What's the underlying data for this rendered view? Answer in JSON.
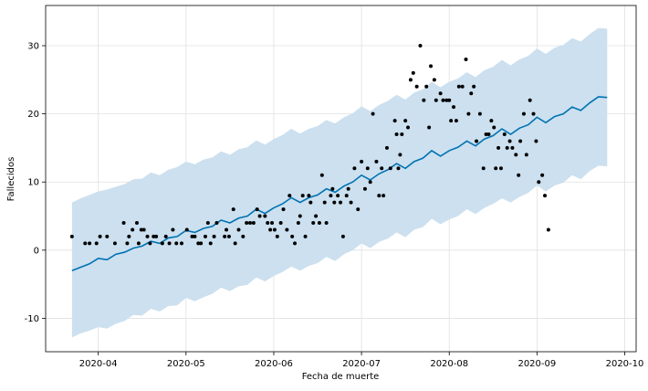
{
  "chart_data": {
    "type": "forecast",
    "xlabel": "Fecha de muerte",
    "ylabel": "Fallecidos",
    "grid": true,
    "xlim": [
      3.4,
      10.13
    ],
    "ylim": [
      -14.9,
      35.9
    ],
    "xticks": [
      {
        "value": 4,
        "label": "2020-04"
      },
      {
        "value": 5,
        "label": "2020-05"
      },
      {
        "value": 6,
        "label": "2020-06"
      },
      {
        "value": 7,
        "label": "2020-07"
      },
      {
        "value": 8,
        "label": "2020-08"
      },
      {
        "value": 9,
        "label": "2020-09"
      },
      {
        "value": 10,
        "label": "2020-10"
      }
    ],
    "yticks": [
      -10,
      0,
      10,
      20,
      30
    ],
    "observed": {
      "color": "#000000",
      "x": [
        3.7,
        3.85,
        3.9,
        3.98,
        4.02,
        4.1,
        4.19,
        4.29,
        4.33,
        4.35,
        4.39,
        4.44,
        4.46,
        4.49,
        4.52,
        4.56,
        4.59,
        4.63,
        4.66,
        4.73,
        4.77,
        4.81,
        4.85,
        4.89,
        4.95,
        5.01,
        5.07,
        5.1,
        5.14,
        5.17,
        5.22,
        5.25,
        5.28,
        5.32,
        5.35,
        5.44,
        5.46,
        5.49,
        5.54,
        5.56,
        5.6,
        5.65,
        5.69,
        5.73,
        5.77,
        5.81,
        5.84,
        5.9,
        5.93,
        5.96,
        5.98,
        6.01,
        6.04,
        6.08,
        6.11,
        6.15,
        6.18,
        6.21,
        6.24,
        6.28,
        6.3,
        6.33,
        6.36,
        6.4,
        6.42,
        6.45,
        6.48,
        6.52,
        6.55,
        6.58,
        6.6,
        6.65,
        6.67,
        6.69,
        6.73,
        6.76,
        6.79,
        6.83,
        6.85,
        6.88,
        6.92,
        6.96,
        7.0,
        7.04,
        7.07,
        7.1,
        7.13,
        7.17,
        7.2,
        7.23,
        7.25,
        7.29,
        7.33,
        7.38,
        7.4,
        7.42,
        7.44,
        7.46,
        7.5,
        7.53,
        7.56,
        7.59,
        7.63,
        7.67,
        7.71,
        7.74,
        7.77,
        7.79,
        7.83,
        7.85,
        7.9,
        7.93,
        7.97,
        8.0,
        8.02,
        8.05,
        8.08,
        8.11,
        8.15,
        8.19,
        8.22,
        8.25,
        8.28,
        8.31,
        8.35,
        8.39,
        8.42,
        8.45,
        8.48,
        8.51,
        8.53,
        8.56,
        8.59,
        8.63,
        8.66,
        8.69,
        8.72,
        8.76,
        8.79,
        8.81,
        8.85,
        8.88,
        8.92,
        8.96,
        8.99,
        9.02,
        9.06,
        9.09,
        9.13
      ],
      "values": [
        2,
        1,
        1,
        1,
        2,
        2,
        1,
        4,
        1,
        2,
        3,
        4,
        1,
        3,
        3,
        2,
        1,
        2,
        2,
        1,
        2,
        1,
        3,
        1,
        1,
        3,
        2,
        2,
        1,
        1,
        2,
        4,
        1,
        2,
        4,
        2,
        3,
        2,
        6,
        1,
        3,
        2,
        4,
        4,
        4,
        6,
        5,
        5,
        4,
        3,
        4,
        3,
        2,
        4,
        6,
        3,
        8,
        2,
        1,
        4,
        5,
        8,
        2,
        8,
        7,
        4,
        5,
        4,
        11,
        7,
        4,
        8,
        9,
        7,
        8,
        7,
        2,
        8,
        9,
        7,
        12,
        6,
        13,
        9,
        12,
        10,
        20,
        13,
        8,
        12,
        8,
        15,
        12,
        19,
        17,
        12,
        14,
        17,
        19,
        18,
        25,
        26,
        24,
        30,
        22,
        24,
        18,
        27,
        25,
        22,
        23,
        22,
        22,
        22,
        19,
        21,
        19,
        24,
        24,
        28,
        20,
        23,
        24,
        16,
        20,
        12,
        17,
        17,
        19,
        18,
        12,
        15,
        12,
        17,
        15,
        16,
        15,
        14,
        11,
        16,
        20,
        14,
        22,
        20,
        16,
        10,
        11,
        8,
        3
      ]
    },
    "forecast": {
      "color": "#0072b2",
      "band_color": "#cce0ef",
      "x": [
        3.7,
        3.8,
        3.9,
        4.0,
        4.1,
        4.2,
        4.3,
        4.4,
        4.5,
        4.6,
        4.7,
        4.8,
        4.9,
        5.0,
        5.1,
        5.2,
        5.3,
        5.4,
        5.5,
        5.6,
        5.7,
        5.8,
        5.9,
        6.0,
        6.1,
        6.2,
        6.3,
        6.4,
        6.5,
        6.6,
        6.7,
        6.8,
        6.9,
        7.0,
        7.1,
        7.2,
        7.3,
        7.4,
        7.5,
        7.6,
        7.7,
        7.8,
        7.9,
        8.0,
        8.1,
        8.2,
        8.3,
        8.4,
        8.5,
        8.6,
        8.7,
        8.8,
        8.9,
        9.0,
        9.1,
        9.2,
        9.3,
        9.4,
        9.5,
        9.6,
        9.7,
        9.8
      ],
      "values": [
        -3.0,
        -2.5,
        -2.0,
        -1.2,
        -1.4,
        -0.6,
        -0.3,
        0.3,
        0.6,
        1.3,
        1.0,
        1.8,
        2.0,
        2.9,
        2.6,
        3.2,
        3.5,
        4.4,
        4.0,
        4.7,
        5.0,
        6.0,
        5.4,
        6.2,
        6.8,
        7.7,
        7.0,
        7.7,
        8.1,
        9.0,
        8.5,
        9.4,
        10.0,
        11.0,
        10.3,
        11.2,
        11.8,
        12.7,
        12.0,
        13.0,
        13.5,
        14.6,
        13.8,
        14.6,
        15.1,
        16.0,
        15.3,
        16.3,
        16.8,
        17.8,
        17.0,
        17.9,
        18.4,
        19.5,
        18.7,
        19.6,
        20.0,
        21.0,
        20.5,
        21.6,
        22.5,
        22.4
      ],
      "lower": [
        -12.8,
        -12.2,
        -11.8,
        -11.3,
        -11.5,
        -10.8,
        -10.4,
        -9.5,
        -9.6,
        -8.6,
        -9.0,
        -8.2,
        -8.1,
        -7.0,
        -7.5,
        -6.9,
        -6.4,
        -5.5,
        -6.0,
        -5.3,
        -5.1,
        -4.0,
        -4.6,
        -3.8,
        -3.2,
        -2.4,
        -3.0,
        -2.3,
        -1.9,
        -1.0,
        -1.6,
        -0.6,
        0.0,
        1.0,
        0.3,
        1.2,
        1.7,
        2.6,
        1.9,
        3.0,
        3.4,
        4.6,
        3.8,
        4.5,
        5.0,
        6.0,
        5.3,
        6.2,
        6.8,
        7.6,
        7.0,
        7.8,
        8.4,
        9.5,
        8.6,
        9.5,
        9.9,
        11.0,
        10.4,
        11.6,
        12.4,
        12.3
      ],
      "upper": [
        7.0,
        7.6,
        8.1,
        8.6,
        8.9,
        9.3,
        9.7,
        10.4,
        10.5,
        11.4,
        11.0,
        11.8,
        12.2,
        13.0,
        12.6,
        13.3,
        13.6,
        14.5,
        14.0,
        14.8,
        15.1,
        16.1,
        15.5,
        16.3,
        16.9,
        17.8,
        17.1,
        17.8,
        18.2,
        19.1,
        18.6,
        19.5,
        20.1,
        21.1,
        20.4,
        21.3,
        21.9,
        22.8,
        22.1,
        23.1,
        23.6,
        24.7,
        23.9,
        24.7,
        25.2,
        26.1,
        25.4,
        26.4,
        26.9,
        27.9,
        27.1,
        28.0,
        28.5,
        29.6,
        28.8,
        29.7,
        30.1,
        31.1,
        30.6,
        31.7,
        32.6,
        32.5
      ]
    }
  }
}
